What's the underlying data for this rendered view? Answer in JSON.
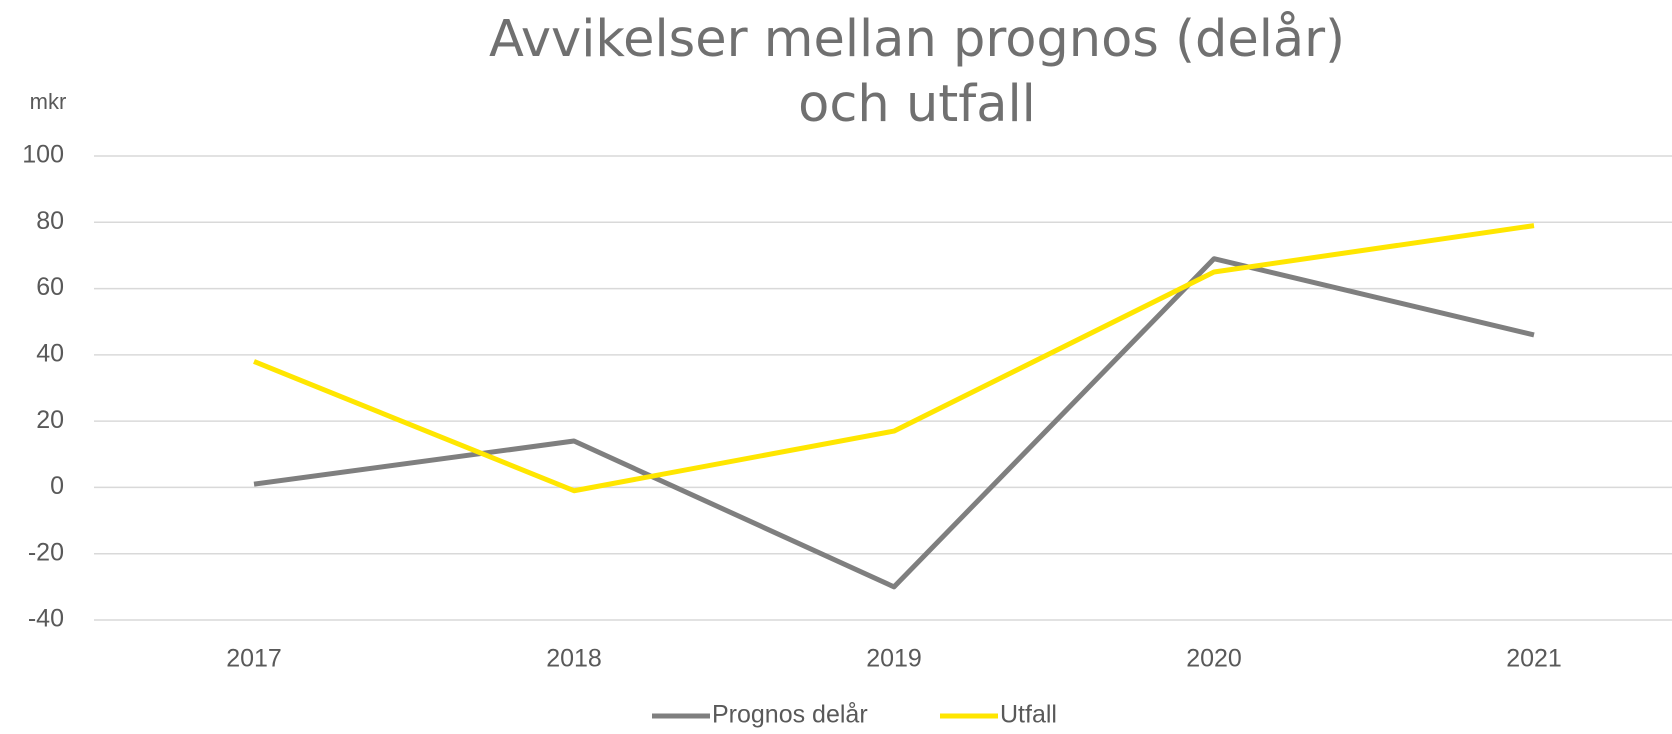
{
  "chart_data": {
    "type": "line",
    "title": [
      "Avvikelser mellan prognos (delår)",
      "och utfall"
    ],
    "y_label": "mkr",
    "categories": [
      "2017",
      "2018",
      "2019",
      "2020",
      "2021"
    ],
    "series": [
      {
        "name": "Prognos delår",
        "color": "#7f7f7f",
        "values": [
          1,
          14,
          -30,
          69,
          46
        ]
      },
      {
        "name": "Utfall",
        "color": "#ffe600",
        "values": [
          38,
          -1,
          17,
          65,
          79
        ]
      }
    ],
    "ylim": [
      -40,
      100
    ],
    "yticks": [
      -40,
      -20,
      0,
      20,
      40,
      60,
      80,
      100
    ],
    "grid": true,
    "legend": "bottom"
  }
}
